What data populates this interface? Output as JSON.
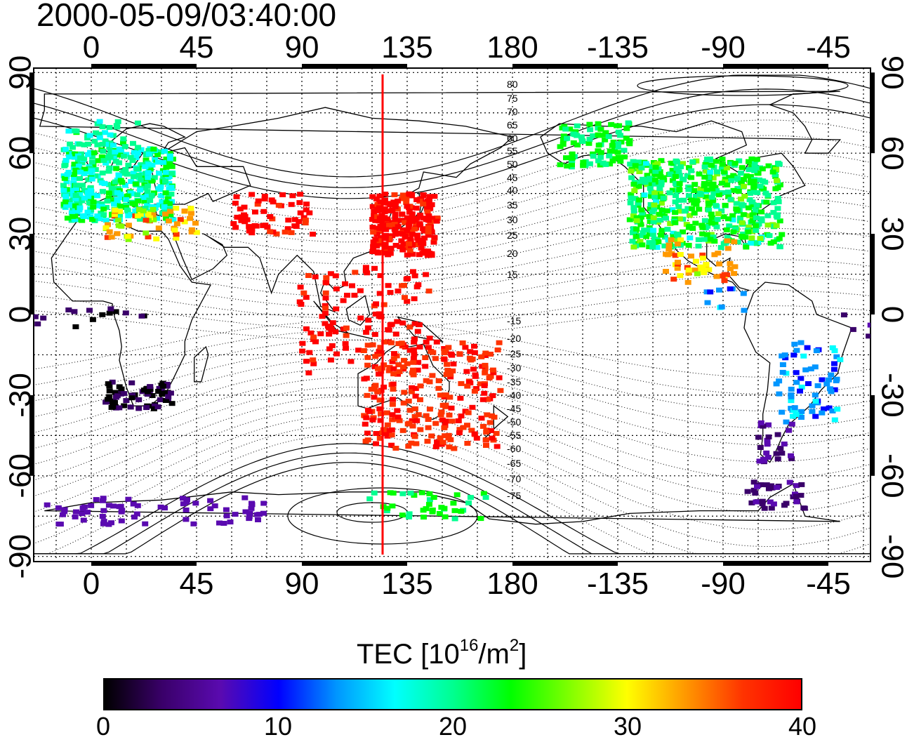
{
  "timestamp": "2000-05-09/03:40:00",
  "map": {
    "top_lon_ticks": [
      "0",
      "45",
      "90",
      "135",
      "180",
      "-135",
      "-90",
      "-45"
    ],
    "bottom_lon_ticks": [
      "0",
      "45",
      "90",
      "135",
      "180",
      "-135",
      "-90",
      "-45"
    ],
    "left_lat_ticks": [
      "90",
      "60",
      "30",
      "0",
      "-30",
      "-60",
      "-90"
    ],
    "right_lat_ticks": [
      "90",
      "60",
      "30",
      "0",
      "-30",
      "-60",
      "-90"
    ],
    "contour_labels": [
      "80",
      "75",
      "70",
      "65",
      "60",
      "55",
      "50",
      "45",
      "40",
      "35",
      "30",
      "25",
      "20",
      "15",
      "-15",
      "-20",
      "-25",
      "-30",
      "-35",
      "-40",
      "-45",
      "-50",
      "-55",
      "-60",
      "-65",
      "-70",
      "-75"
    ],
    "meridian_line_color": "#ff0000"
  },
  "colorbar": {
    "title_prefix": "TEC  [10",
    "title_exp1": "16",
    "title_mid": "/m",
    "title_exp2": "2",
    "title_suffix": "]",
    "ticks": [
      "0",
      "10",
      "20",
      "30",
      "40"
    ],
    "min": 0,
    "max": 40,
    "colors": [
      "#000000",
      "#3a006a",
      "#5a0ab0",
      "#0000ff",
      "#0096ff",
      "#00ffff",
      "#00ff90",
      "#00ff00",
      "#7fff00",
      "#ffff00",
      "#ff9900",
      "#ff3300",
      "#ff0000"
    ]
  }
}
